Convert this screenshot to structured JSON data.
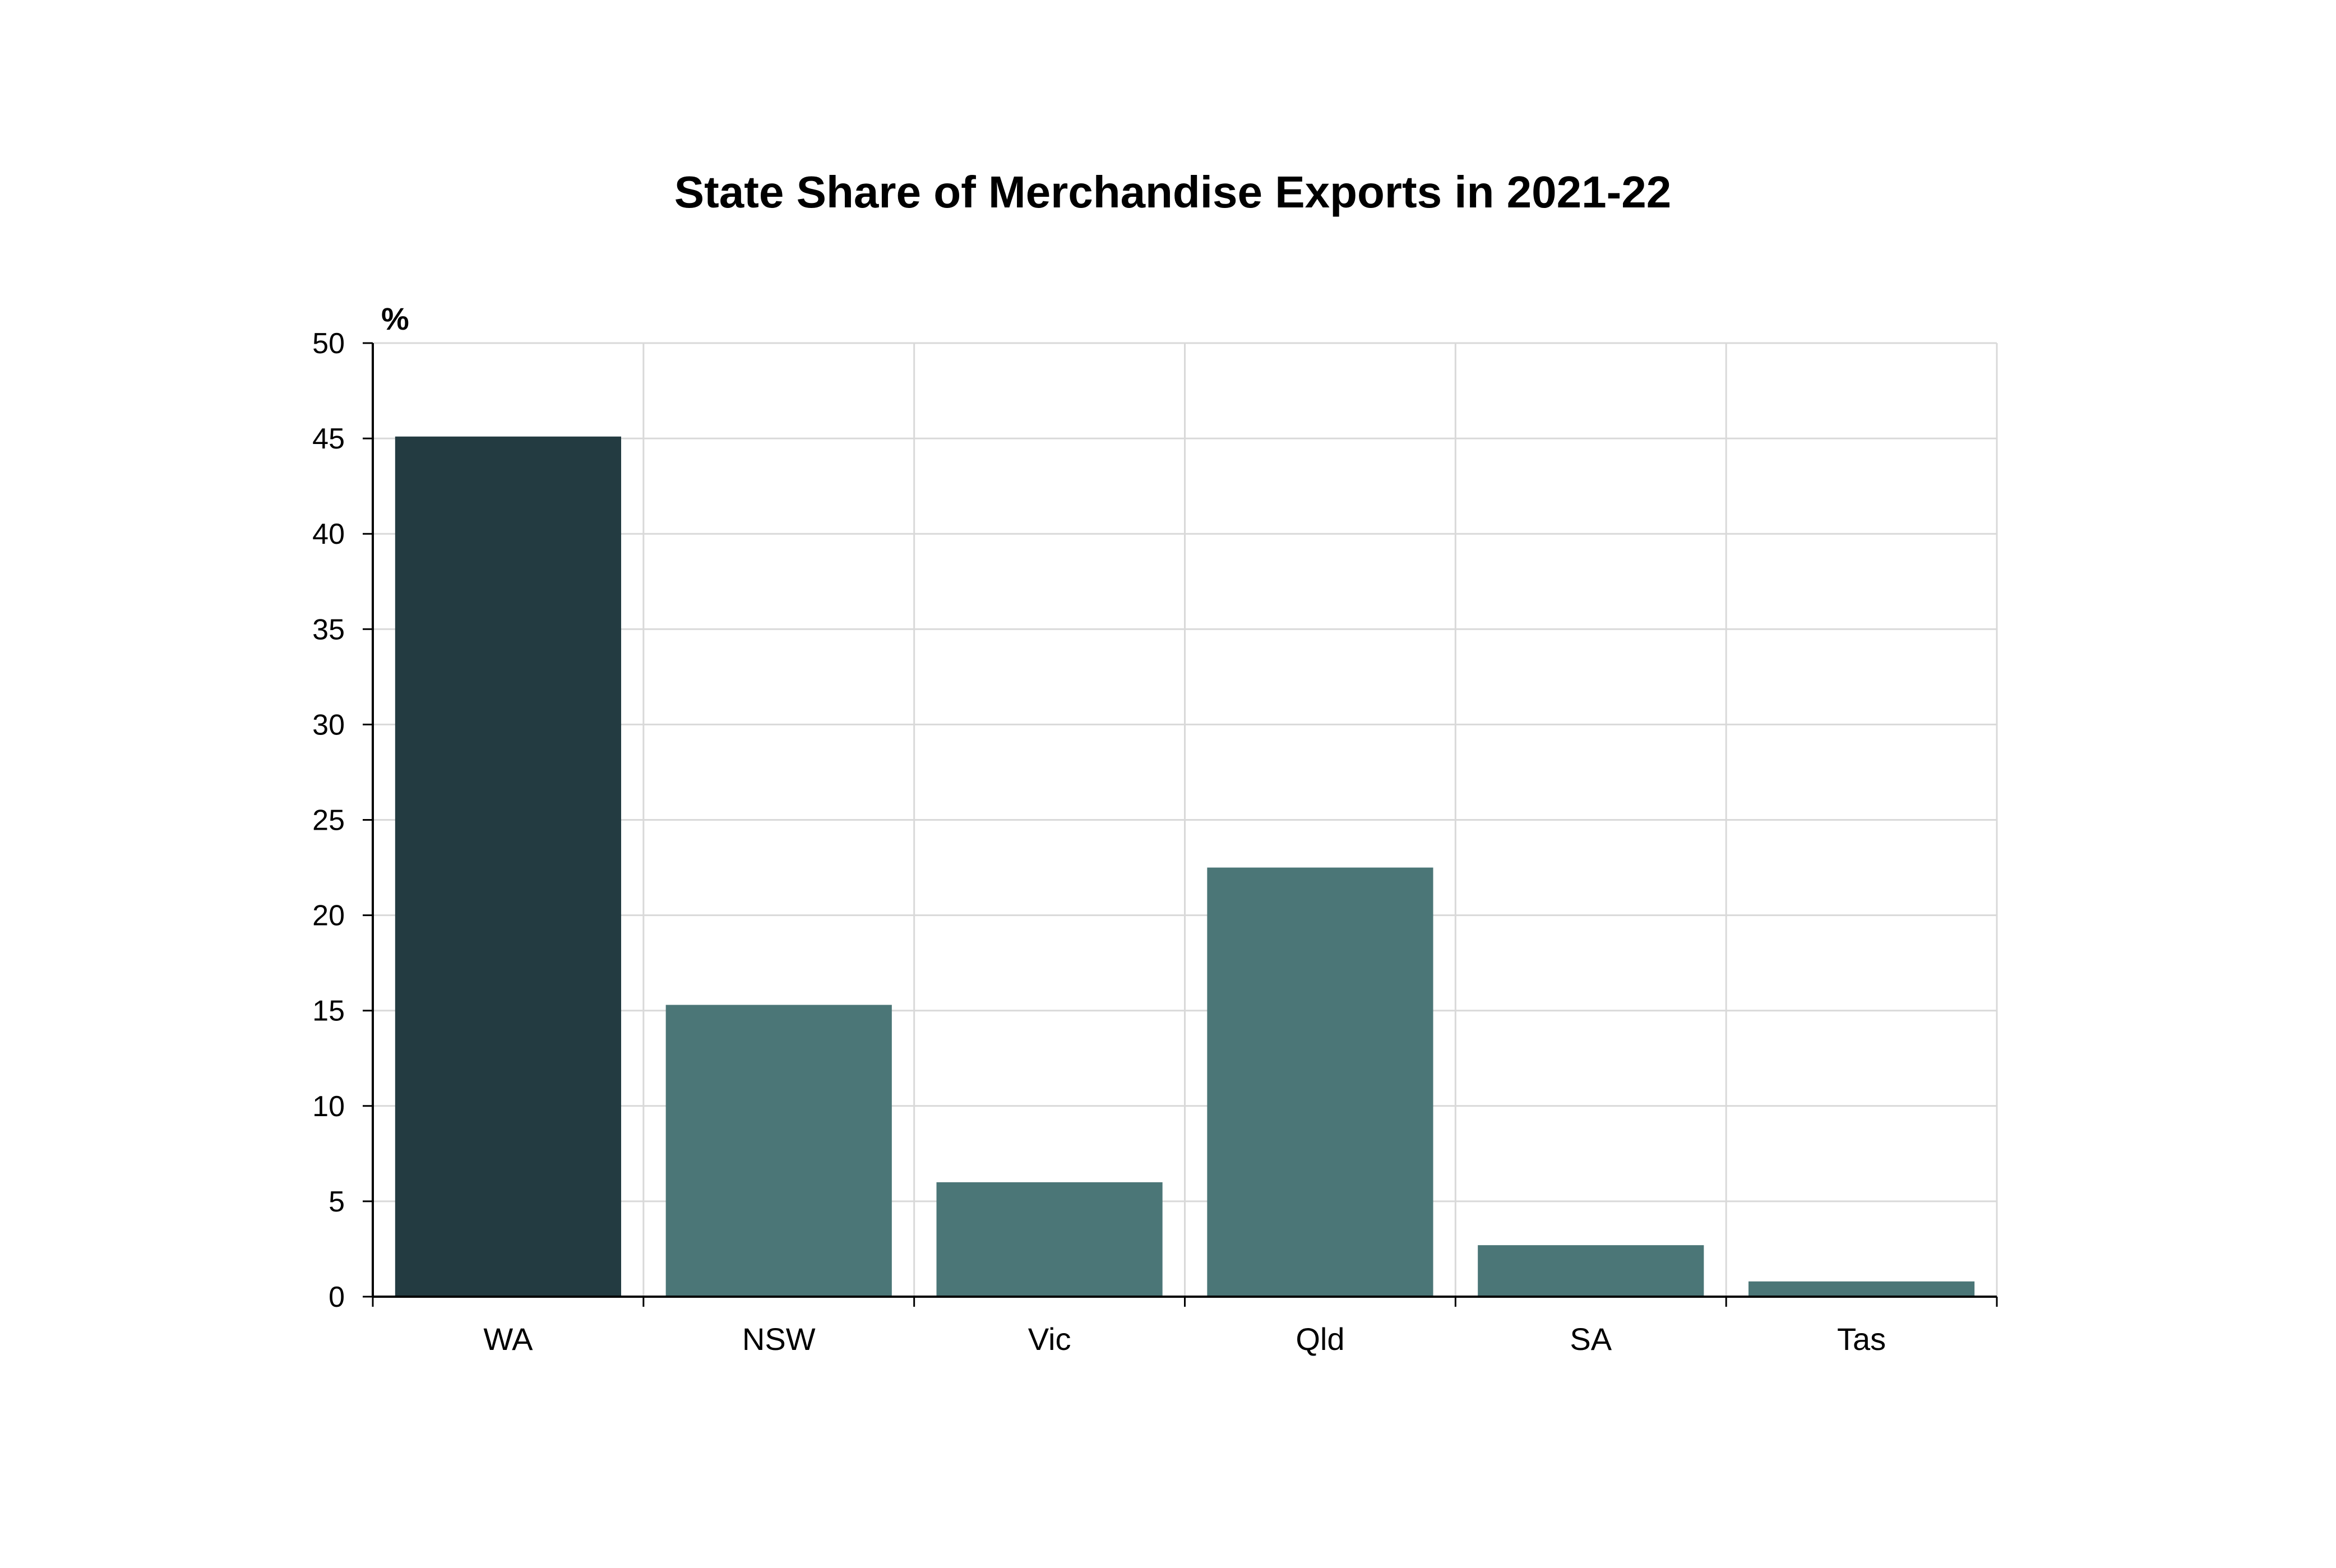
{
  "chart_data": {
    "type": "bar",
    "title": "State Share of Merchandise Exports in 2021-22",
    "ylabel": "%",
    "xlabel": "",
    "categories": [
      "WA",
      "NSW",
      "Vic",
      "Qld",
      "SA",
      "Tas"
    ],
    "values": [
      45.1,
      15.3,
      6.0,
      22.5,
      2.7,
      0.8
    ],
    "ylim": [
      0,
      50
    ],
    "yticks": [
      "0",
      "5",
      "10",
      "15",
      "20",
      "25",
      "30",
      "35",
      "40",
      "45",
      "50"
    ],
    "grid": true,
    "legend": "none",
    "colors": {
      "highlight": "#233b41",
      "bar": "#4b7677",
      "grid": "#d9d9d9",
      "axis": "#000000",
      "text": "#000000"
    },
    "highlight_category": "WA"
  }
}
